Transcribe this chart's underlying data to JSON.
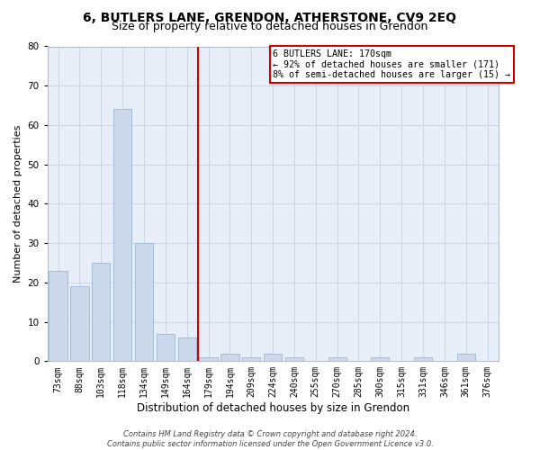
{
  "title1": "6, BUTLERS LANE, GRENDON, ATHERSTONE, CV9 2EQ",
  "title2": "Size of property relative to detached houses in Grendon",
  "xlabel": "Distribution of detached houses by size in Grendon",
  "ylabel": "Number of detached properties",
  "categories": [
    "73sqm",
    "88sqm",
    "103sqm",
    "118sqm",
    "134sqm",
    "149sqm",
    "164sqm",
    "179sqm",
    "194sqm",
    "209sqm",
    "224sqm",
    "240sqm",
    "255sqm",
    "270sqm",
    "285sqm",
    "300sqm",
    "315sqm",
    "331sqm",
    "346sqm",
    "361sqm",
    "376sqm"
  ],
  "values": [
    23,
    19,
    25,
    64,
    30,
    7,
    6,
    1,
    2,
    1,
    2,
    1,
    0,
    1,
    0,
    1,
    0,
    1,
    0,
    2,
    0
  ],
  "bar_color": "#ccd9ed",
  "bar_edge_color": "#9ab5d4",
  "grid_color": "#c8d0de",
  "bg_color": "#e8eef7",
  "vline_color": "#cc0000",
  "annotation_text": "6 BUTLERS LANE: 170sqm\n← 92% of detached houses are smaller (171)\n8% of semi-detached houses are larger (15) →",
  "annotation_box_color": "#cc0000",
  "ylim": [
    0,
    80
  ],
  "yticks": [
    0,
    10,
    20,
    30,
    40,
    50,
    60,
    70,
    80
  ],
  "footer": "Contains HM Land Registry data © Crown copyright and database right 2024.\nContains public sector information licensed under the Open Government Licence v3.0.",
  "title_fontsize": 10,
  "subtitle_fontsize": 9,
  "xlabel_fontsize": 8.5,
  "ylabel_fontsize": 8,
  "tick_fontsize": 7,
  "footer_fontsize": 6
}
